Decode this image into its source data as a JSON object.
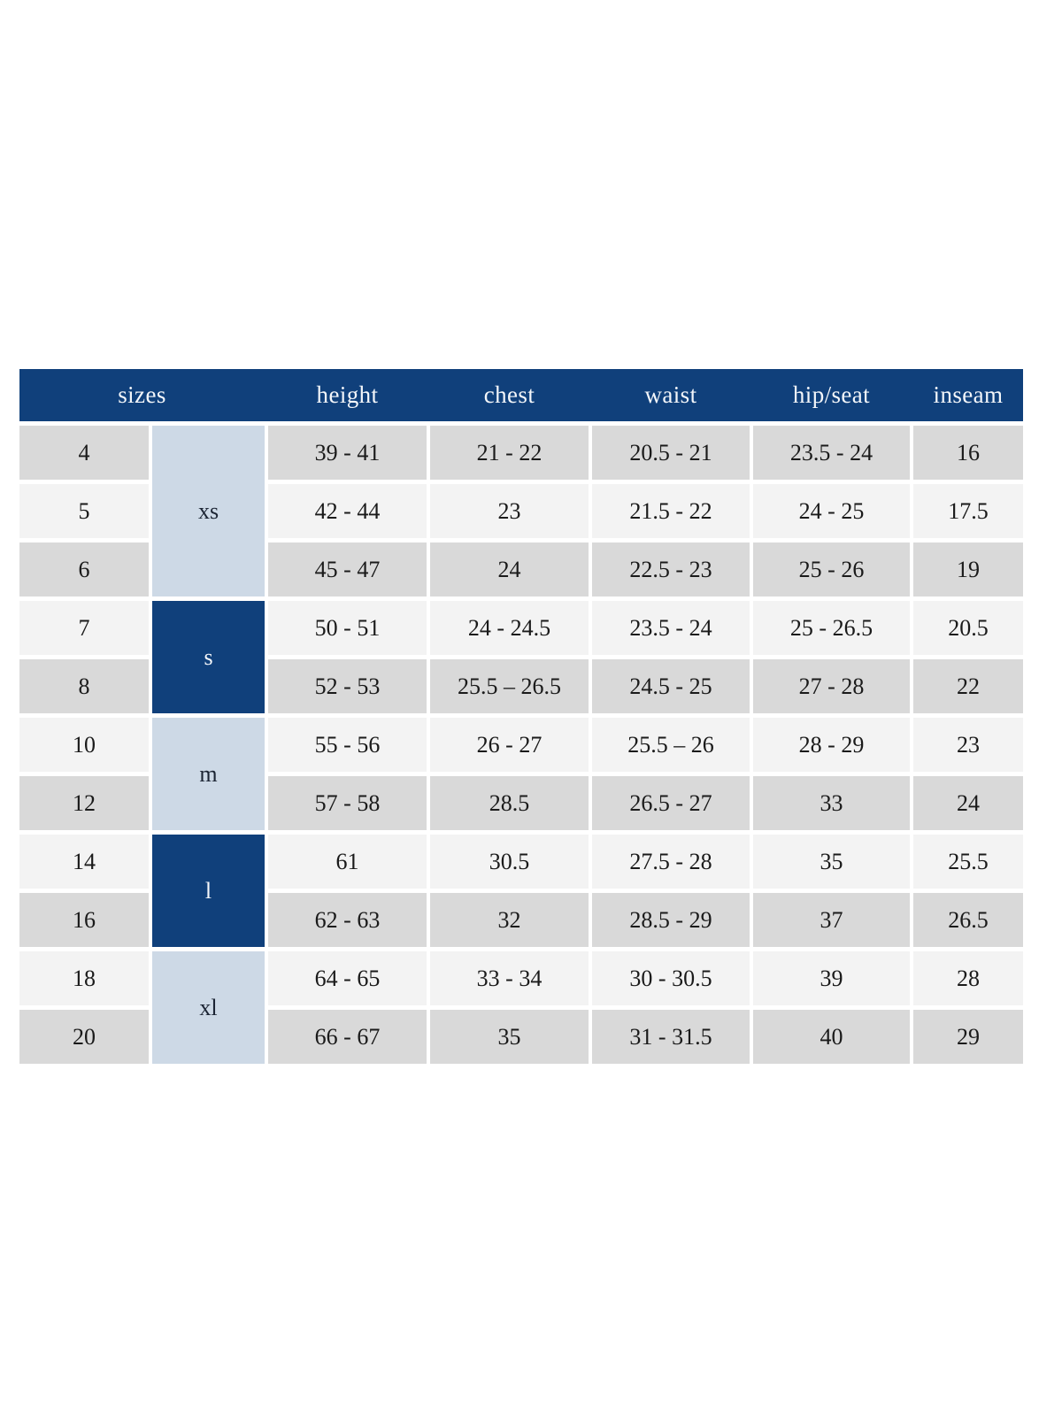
{
  "colors": {
    "header_blue": "#10407b",
    "group_dark_blue": "#10407b",
    "group_light_blue": "#cdd9e6",
    "row_gray": "#d9d9d9",
    "row_light": "#f3f3f3",
    "header_text": "#f3f6fa",
    "cell_text": "#1a1a1a",
    "page_background": "#ffffff"
  },
  "table": {
    "headers": {
      "sizes": "sizes",
      "height": "height",
      "chest": "chest",
      "waist": "waist",
      "hip_seat": "hip/seat",
      "inseam": "inseam"
    },
    "groups": [
      {
        "label": "xs",
        "variant": "light",
        "rows_spanned": 3
      },
      {
        "label": "s",
        "variant": "dark",
        "rows_spanned": 2
      },
      {
        "label": "m",
        "variant": "light",
        "rows_spanned": 2
      },
      {
        "label": "l",
        "variant": "dark",
        "rows_spanned": 2
      },
      {
        "label": "xl",
        "variant": "light",
        "rows_spanned": 2
      }
    ],
    "rows": [
      {
        "size": "4",
        "height": "39 - 41",
        "chest": "21 - 22",
        "waist": "20.5 - 21",
        "hip_seat": "23.5 - 24",
        "inseam": "16"
      },
      {
        "size": "5",
        "height": "42 - 44",
        "chest": "23",
        "waist": "21.5 - 22",
        "hip_seat": "24 - 25",
        "inseam": "17.5"
      },
      {
        "size": "6",
        "height": "45 - 47",
        "chest": "24",
        "waist": "22.5 - 23",
        "hip_seat": "25 - 26",
        "inseam": "19"
      },
      {
        "size": "7",
        "height": "50 - 51",
        "chest": "24 - 24.5",
        "waist": "23.5 - 24",
        "hip_seat": "25 - 26.5",
        "inseam": "20.5"
      },
      {
        "size": "8",
        "height": "52 - 53",
        "chest": "25.5 – 26.5",
        "waist": "24.5 - 25",
        "hip_seat": "27 - 28",
        "inseam": "22"
      },
      {
        "size": "10",
        "height": "55 - 56",
        "chest": "26 - 27",
        "waist": "25.5 – 26",
        "hip_seat": "28 - 29",
        "inseam": "23"
      },
      {
        "size": "12",
        "height": "57 - 58",
        "chest": "28.5",
        "waist": "26.5 - 27",
        "hip_seat": "33",
        "inseam": "24"
      },
      {
        "size": "14",
        "height": "61",
        "chest": "30.5",
        "waist": "27.5 - 28",
        "hip_seat": "35",
        "inseam": "25.5"
      },
      {
        "size": "16",
        "height": "62 - 63",
        "chest": "32",
        "waist": "28.5 - 29",
        "hip_seat": "37",
        "inseam": "26.5"
      },
      {
        "size": "18",
        "height": "64 - 65",
        "chest": "33 - 34",
        "waist": "30 - 30.5",
        "hip_seat": "39",
        "inseam": "28"
      },
      {
        "size": "20",
        "height": "66 - 67",
        "chest": "35",
        "waist": "31 - 31.5",
        "hip_seat": "40",
        "inseam": "29"
      }
    ]
  }
}
